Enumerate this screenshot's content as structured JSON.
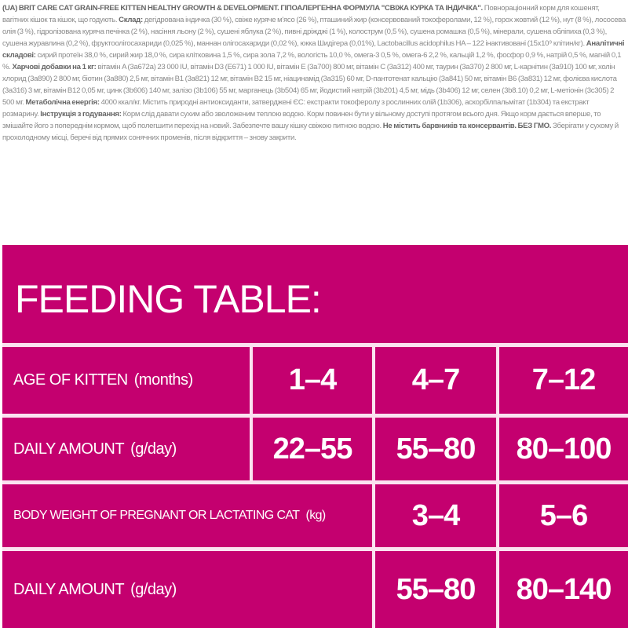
{
  "description": {
    "lines": [
      [
        {
          "t": "(UA) BRIT CARE CAT GRAIN-FREE KITTEN HEALTHY GROWTH & DEVELOPMENT. ГІПОАЛЕРГЕННА ФОРМУЛА \"СВІЖА КУРКА ТА ІНДИЧКА\". ",
          "b": true
        },
        {
          "t": "Повнораціонний корм для кошенят, вагітних кішок та кішок, що годують. ",
          "b": false
        },
        {
          "t": "Склад: ",
          "b": true
        },
        {
          "t": "дегідрована індичка",
          "b": false
        }
      ],
      [
        {
          "t": "(30 %), свіже куряче м'ясо (26 %), пташиний жир (консервований токоферолами, 12 %), горох жовтий (12 %), нут (8 %), лососева олія (3 %), гідролізована куряча печінка (2 %), насіння льону (2 %), сушені яблука (2 %), пивні дріжджі (1 %),",
          "b": false
        }
      ],
      [
        {
          "t": "колострум (0,5 %), сушена ромашка (0,5 %), мінерали, сушена обліпиха (0,3 %), сушена журавлина (0,2 %), фруктоолігосахариди (0,025 %), маннан олігосахариди (0,02 %), юкка Шидігера (0,01%), Lactobacillus acidophilus HA – 122",
          "b": false
        }
      ],
      [
        {
          "t": "інактивовані (15x10⁹ клітин/кг). ",
          "b": false
        },
        {
          "t": "Аналітичні складові: ",
          "b": true
        },
        {
          "t": "сирий протеїн 38,0 %, сирий жир 18,0 %, сира клітковина 1,5 %, сира зола 7,2 %, вологість 10,0 %, омега-3 0,5 %, омега-6 2,2 %, кальцій 1,2 %, фосфор 0,9 %, натрій 0,5 %, магній 0,1 %.",
          "b": false
        }
      ],
      [
        {
          "t": "Харчові добавки на 1 кг: ",
          "b": true
        },
        {
          "t": "вітамін A (3a672a) 23 000 IU, вітамін D3 (E671) 1 000 IU, вітамін E (3a700) 800 мг, вітамін C (3a312) 400 мг, таурин (3a370) 2 800 мг, L-карнітин (3a910) 100 мг, холін хлорид (3a890) 2 800 мг, біотин (3a880) 2,5 мг, вітамін",
          "b": false
        }
      ],
      [
        {
          "t": "B1 (3a821) 12 мг, вітамін B2 15 мг, ніацинамід (3a315) 60 мг, D-пантотенат кальцію (3a841) 50 мг, вітамін B6 (3a831) 12 мг, фолієва кислота (3a316) 3 мг, вітамін B12 0,05 мг, цинк (3b606) 140 мг, залізо (3b106) 55 мг, марганець (3b504) 65 мг,",
          "b": false
        }
      ],
      [
        {
          "t": "йодистий натрій (3b201) 4,5 мг, мідь (3b406) 12 мг, селен (3b8.10) 0,2 мг, L-метіонін (3c305) 2 500 мг. ",
          "b": false
        },
        {
          "t": "Метаболічна енергія: ",
          "b": true
        },
        {
          "t": "4000 ккал/кг. Містить природні антиоксиданти, затверджені ЄС: екстракти токоферолу з рослинних олій (1b306),",
          "b": false
        }
      ],
      [
        {
          "t": "аскорбілпальмітат (1b304) та екстракт розмарину. ",
          "b": false
        },
        {
          "t": "Інструкція з годування: ",
          "b": true
        },
        {
          "t": "Корм слід давати сухим або зволоженим теплою водою. Корм повинен бути у вільному доступі протягом всього дня. Якщо корм дається вперше, то змішайте його",
          "b": false
        }
      ],
      [
        {
          "t": "з попереднім кормом, щоб полегшити перехід на новий. Забезпечте вашу кішку свіжою питною водою. ",
          "b": false
        },
        {
          "t": "Не містить барвників та консервантів. БЕЗ ГМО. ",
          "b": true
        },
        {
          "t": "Зберігати у сухому й прохолодному місці, беречі від прямих сонячних променів,",
          "b": false
        }
      ],
      [
        {
          "t": "після відкриття – знову закрити.",
          "b": false
        }
      ]
    ]
  },
  "feeding_table": {
    "title": "FEEDING TABLE:",
    "background_color": "#c4006f",
    "rows": [
      {
        "label": "AGE OF KITTEN",
        "unit": "(months)",
        "values": [
          "1–4",
          "4–7",
          "7–12"
        ]
      },
      {
        "label": "DAILY AMOUNT",
        "unit": "(g/day)",
        "values": [
          "22–55",
          "55–80",
          "80–100"
        ]
      },
      {
        "label": "BODY WEIGHT OF PREGNANT OR LACTATING CAT",
        "unit": "(kg)",
        "values": [
          "3–4",
          "5–6"
        ]
      },
      {
        "label": "DAILY AMOUNT",
        "unit": "(g/day)",
        "values": [
          "55–80",
          "80–140"
        ]
      }
    ]
  }
}
